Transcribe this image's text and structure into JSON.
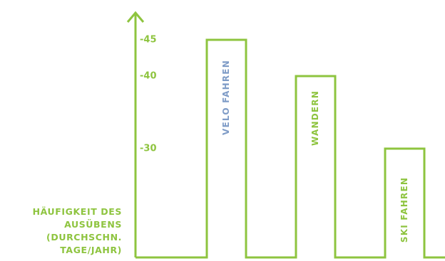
{
  "colors": {
    "axis": "#8ec43f",
    "bar_stroke": "#8ec43f",
    "tick_label": "#8ec43f",
    "label_blue": "#7f9cc7",
    "label_green": "#8ec43f"
  },
  "chart_data": {
    "type": "bar",
    "categories": [
      "VELO FAHREN",
      "WANDERN",
      "SKI FAHREN"
    ],
    "values": [
      45,
      40,
      30
    ],
    "category_label_colors": [
      "#7f9cc7",
      "#8ec43f",
      "#8ec43f"
    ],
    "yticks": [
      {
        "value": 45,
        "label": "-45"
      },
      {
        "value": 40,
        "label": "-40"
      },
      {
        "value": 30,
        "label": "-30"
      }
    ],
    "ylabel_lines": [
      "HÄUFIGKEIT DES",
      "AUSÜBENS",
      "(DURCHSCHN.",
      "TAGE/JAHR)"
    ],
    "xlabel": "",
    "title": "",
    "grid": false,
    "style": "outline-steps"
  }
}
